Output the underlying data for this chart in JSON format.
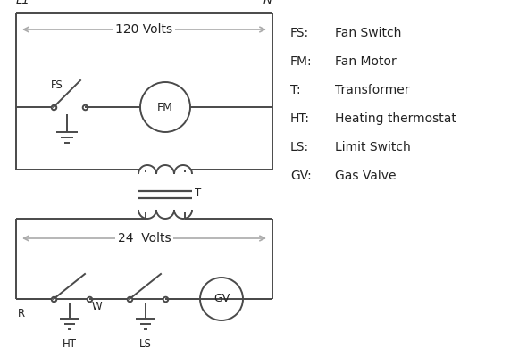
{
  "bg_color": "#ffffff",
  "line_color": "#4a4a4a",
  "text_color": "#222222",
  "arrow_color": "#aaaaaa",
  "legend_items": [
    [
      "FS:",
      "Fan Switch"
    ],
    [
      "FM:",
      "Fan Motor"
    ],
    [
      "T:",
      "Transformer"
    ],
    [
      "HT:",
      "Heating thermostat"
    ],
    [
      "LS:",
      "Limit Switch"
    ],
    [
      "GV:",
      "Gas Valve"
    ]
  ]
}
